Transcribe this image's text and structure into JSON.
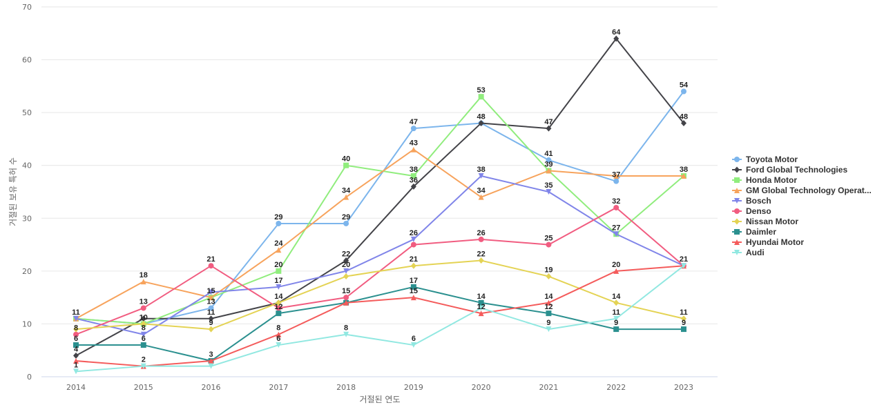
{
  "chart_data": {
    "type": "line",
    "title": "",
    "xlabel": "거절된 연도",
    "ylabel": "거절된 보유 특허 수",
    "x": [
      "2014",
      "2015",
      "2016",
      "2017",
      "2018",
      "2019",
      "2020",
      "2021",
      "2022",
      "2023"
    ],
    "ylim": [
      0,
      70
    ],
    "yticks": [
      0,
      10,
      20,
      30,
      40,
      50,
      60,
      70
    ],
    "grid": true,
    "legend_position": "right",
    "series": [
      {
        "name": "Toyota Motor",
        "color": "#7cb5ec",
        "marker": "circle",
        "values": [
          11,
          10,
          13,
          29,
          29,
          47,
          48,
          41,
          37,
          54
        ]
      },
      {
        "name": "Ford Global Technologies",
        "color": "#434348",
        "marker": "diamond",
        "values": [
          4,
          11,
          11,
          14,
          22,
          36,
          48,
          47,
          64,
          48
        ]
      },
      {
        "name": "Honda Motor",
        "color": "#90ed7d",
        "marker": "square",
        "values": [
          11,
          10,
          15,
          20,
          40,
          38,
          53,
          39,
          27,
          38
        ]
      },
      {
        "name": "GM Global Technology Operat...",
        "color": "#f7a35c",
        "marker": "triangle",
        "values": [
          11,
          18,
          15,
          24,
          34,
          43,
          34,
          39,
          38,
          38
        ]
      },
      {
        "name": "Bosch",
        "color": "#8085e9",
        "marker": "triangle-down",
        "values": [
          11,
          8,
          16,
          17,
          20,
          26,
          38,
          35,
          27,
          21
        ]
      },
      {
        "name": "Denso",
        "color": "#f15c80",
        "marker": "circle",
        "values": [
          8,
          13,
          21,
          13,
          15,
          25,
          26,
          25,
          32,
          21
        ]
      },
      {
        "name": "Nissan Motor",
        "color": "#e4d354",
        "marker": "diamond",
        "values": [
          9,
          10,
          9,
          14,
          19,
          21,
          22,
          19,
          14,
          11
        ]
      },
      {
        "name": "Daimler",
        "color": "#2b908f",
        "marker": "square",
        "values": [
          6,
          6,
          3,
          12,
          14,
          17,
          14,
          12,
          9,
          9
        ]
      },
      {
        "name": "Hyundai Motor",
        "color": "#f45b5b",
        "marker": "triangle",
        "values": [
          3,
          2,
          3,
          8,
          14,
          15,
          12,
          14,
          20,
          21
        ]
      },
      {
        "name": "Audi",
        "color": "#91e8e1",
        "marker": "triangle-down",
        "values": [
          1,
          2,
          2,
          6,
          8,
          6,
          13,
          9,
          11,
          21
        ]
      }
    ],
    "data_labels": [
      {
        "x": "2014",
        "y": 11,
        "text": "11"
      },
      {
        "x": "2015",
        "y": 18,
        "text": "18"
      },
      {
        "x": "2016",
        "y": 21,
        "text": "21"
      },
      {
        "x": "2017",
        "y": 29,
        "text": "29"
      },
      {
        "x": "2018",
        "y": 40,
        "text": "40"
      },
      {
        "x": "2019",
        "y": 47,
        "text": "47"
      },
      {
        "x": "2020",
        "y": 53,
        "text": "53"
      },
      {
        "x": "2021",
        "y": 47,
        "text": "47"
      },
      {
        "x": "2022",
        "y": 64,
        "text": "64"
      },
      {
        "x": "2023",
        "y": 54,
        "text": "54"
      },
      {
        "x": "2014",
        "y": 8,
        "text": "8"
      },
      {
        "x": "2014",
        "y": 6,
        "text": "6"
      },
      {
        "x": "2014",
        "y": 4,
        "text": "4"
      },
      {
        "x": "2014",
        "y": 1,
        "text": "1"
      },
      {
        "x": "2015",
        "y": 13,
        "text": "13"
      },
      {
        "x": "2015",
        "y": 10,
        "text": "10"
      },
      {
        "x": "2015",
        "y": 8,
        "text": "8"
      },
      {
        "x": "2015",
        "y": 6,
        "text": "6"
      },
      {
        "x": "2015",
        "y": 2,
        "text": "2"
      },
      {
        "x": "2016",
        "y": 15,
        "text": "15"
      },
      {
        "x": "2016",
        "y": 13,
        "text": "13"
      },
      {
        "x": "2016",
        "y": 11,
        "text": "11"
      },
      {
        "x": "2016",
        "y": 9,
        "text": "9"
      },
      {
        "x": "2016",
        "y": 3,
        "text": "3"
      },
      {
        "x": "2017",
        "y": 24,
        "text": "24"
      },
      {
        "x": "2017",
        "y": 20,
        "text": "20"
      },
      {
        "x": "2017",
        "y": 17,
        "text": "17"
      },
      {
        "x": "2017",
        "y": 14,
        "text": "14"
      },
      {
        "x": "2017",
        "y": 12,
        "text": "12"
      },
      {
        "x": "2017",
        "y": 8,
        "text": "8"
      },
      {
        "x": "2017",
        "y": 6,
        "text": "6"
      },
      {
        "x": "2018",
        "y": 34,
        "text": "34"
      },
      {
        "x": "2018",
        "y": 29,
        "text": "29"
      },
      {
        "x": "2018",
        "y": 22,
        "text": "22"
      },
      {
        "x": "2018",
        "y": 20,
        "text": "20"
      },
      {
        "x": "2018",
        "y": 15,
        "text": "15"
      },
      {
        "x": "2018",
        "y": 8,
        "text": "8"
      },
      {
        "x": "2019",
        "y": 43,
        "text": "43"
      },
      {
        "x": "2019",
        "y": 38,
        "text": "38"
      },
      {
        "x": "2019",
        "y": 36,
        "text": "36"
      },
      {
        "x": "2019",
        "y": 26,
        "text": "26"
      },
      {
        "x": "2019",
        "y": 21,
        "text": "21"
      },
      {
        "x": "2019",
        "y": 17,
        "text": "17"
      },
      {
        "x": "2019",
        "y": 15,
        "text": "15"
      },
      {
        "x": "2019",
        "y": 6,
        "text": "6"
      },
      {
        "x": "2020",
        "y": 48,
        "text": "48"
      },
      {
        "x": "2020",
        "y": 38,
        "text": "38"
      },
      {
        "x": "2020",
        "y": 34,
        "text": "34"
      },
      {
        "x": "2020",
        "y": 26,
        "text": "26"
      },
      {
        "x": "2020",
        "y": 22,
        "text": "22"
      },
      {
        "x": "2020",
        "y": 14,
        "text": "14"
      },
      {
        "x": "2020",
        "y": 12,
        "text": "12"
      },
      {
        "x": "2021",
        "y": 41,
        "text": "41"
      },
      {
        "x": "2021",
        "y": 39,
        "text": "39"
      },
      {
        "x": "2021",
        "y": 35,
        "text": "35"
      },
      {
        "x": "2021",
        "y": 25,
        "text": "25"
      },
      {
        "x": "2021",
        "y": 19,
        "text": "19"
      },
      {
        "x": "2021",
        "y": 14,
        "text": "14"
      },
      {
        "x": "2021",
        "y": 12,
        "text": "12"
      },
      {
        "x": "2021",
        "y": 9,
        "text": "9"
      },
      {
        "x": "2022",
        "y": 37,
        "text": "37"
      },
      {
        "x": "2022",
        "y": 32,
        "text": "32"
      },
      {
        "x": "2022",
        "y": 27,
        "text": "27"
      },
      {
        "x": "2022",
        "y": 20,
        "text": "20"
      },
      {
        "x": "2022",
        "y": 14,
        "text": "14"
      },
      {
        "x": "2022",
        "y": 11,
        "text": "11"
      },
      {
        "x": "2022",
        "y": 9,
        "text": "9"
      },
      {
        "x": "2023",
        "y": 48,
        "text": "48"
      },
      {
        "x": "2023",
        "y": 38,
        "text": "38"
      },
      {
        "x": "2023",
        "y": 21,
        "text": "21"
      },
      {
        "x": "2023",
        "y": 11,
        "text": "11"
      },
      {
        "x": "2023",
        "y": 9,
        "text": "9"
      }
    ]
  }
}
